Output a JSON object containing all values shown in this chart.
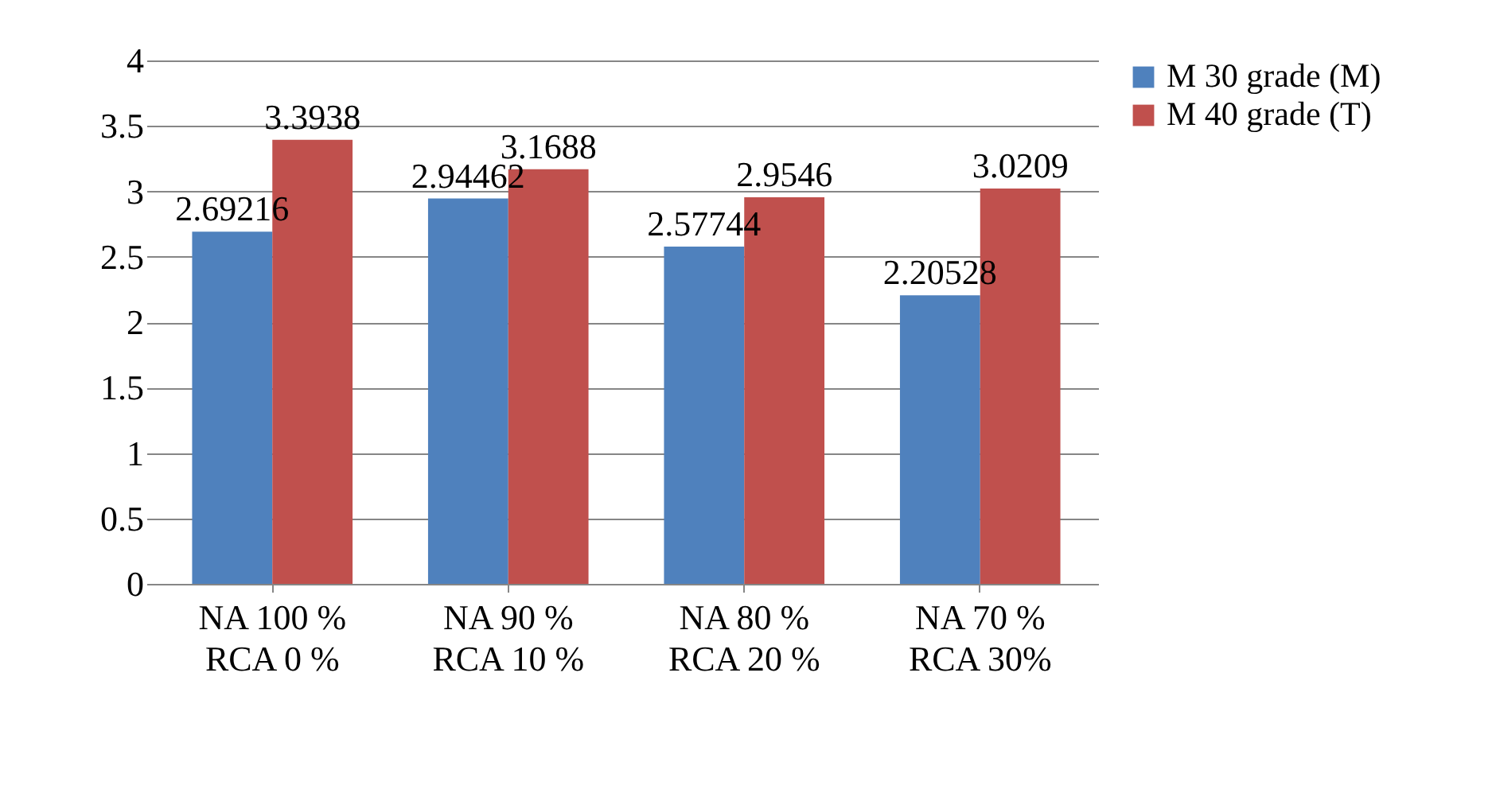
{
  "chart_data": {
    "type": "bar",
    "categories": [
      "NA 100 % RCA 0 %",
      "NA 90 % RCA 10 %",
      "NA 80 % RCA 20 %",
      "NA 70 % RCA 30%"
    ],
    "series": [
      {
        "name": "M 30 grade (M)",
        "color": "#4f81bd",
        "values": [
          2.69216,
          2.94462,
          2.57744,
          2.20528
        ]
      },
      {
        "name": "M 40 grade (T)",
        "color": "#c0504d",
        "values": [
          3.3938,
          3.1688,
          2.9546,
          3.0209
        ]
      }
    ],
    "ylim": [
      0,
      4
    ],
    "yticks": [
      0,
      0.5,
      1,
      1.5,
      2,
      2.5,
      3,
      3.5,
      4
    ],
    "grid": "y",
    "legend": "right",
    "data_labels": true
  }
}
